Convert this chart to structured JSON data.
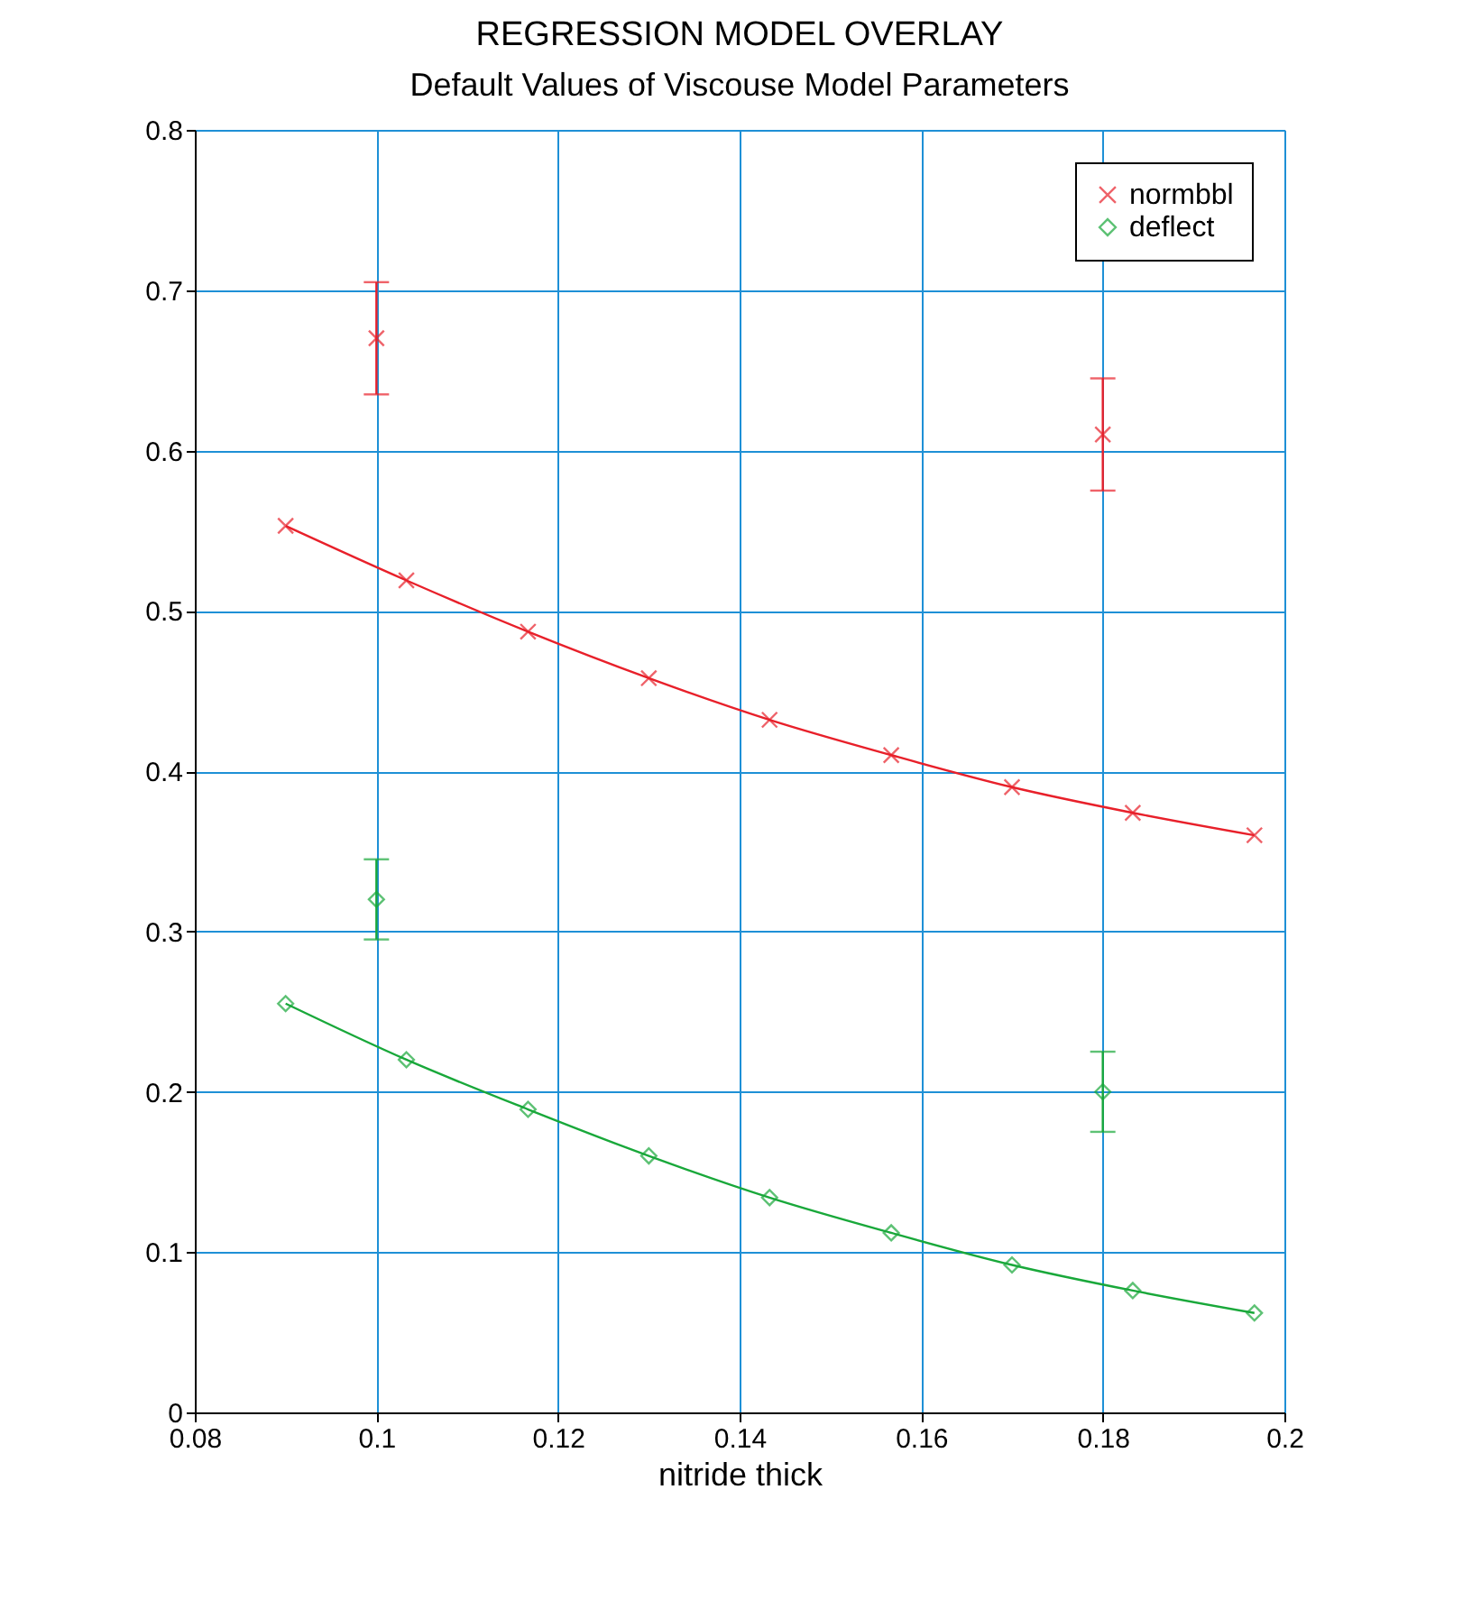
{
  "chart_data": {
    "type": "line",
    "title": "REGRESSION MODEL OVERLAY",
    "subtitle": "Default Values of Viscouse Model Parameters",
    "xlabel": "nitride thick",
    "xlim": [
      0.08,
      0.2
    ],
    "xticks": [
      0.08,
      0.1,
      0.12,
      0.14,
      0.16,
      0.18,
      0.2
    ],
    "ylim": [
      0,
      0.8
    ],
    "yticks": [
      0,
      0.1,
      0.2,
      0.3,
      0.4,
      0.5,
      0.6,
      0.7,
      0.8
    ],
    "grid": true,
    "legend": "top right",
    "series": [
      {
        "name": "normbbl",
        "marker": "cross",
        "color": "#e8202a",
        "x": [
          0.09,
          0.1033,
          0.1167,
          0.13,
          0.1433,
          0.1567,
          0.17,
          0.1833,
          0.1967
        ],
        "values": [
          0.553,
          0.519,
          0.487,
          0.458,
          0.432,
          0.41,
          0.39,
          0.374,
          0.36
        ]
      },
      {
        "name": "deflect",
        "marker": "diamond",
        "color": "#19a83a",
        "x": [
          0.09,
          0.1033,
          0.1167,
          0.13,
          0.1433,
          0.1567,
          0.17,
          0.1833,
          0.1967
        ],
        "values": [
          0.255,
          0.22,
          0.189,
          0.16,
          0.134,
          0.112,
          0.092,
          0.076,
          0.062
        ]
      },
      {
        "type": "scatter",
        "marker": "cross",
        "color": "#e8202a",
        "x": [
          0.1,
          0.18
        ],
        "values": [
          0.67,
          0.61
        ],
        "errors": [
          [
            0.635,
            0.705
          ],
          [
            0.575,
            0.645
          ]
        ]
      },
      {
        "type": "scatter",
        "marker": "diamond",
        "color": "#19a83a",
        "x": [
          0.1,
          0.18
        ],
        "values": [
          0.32,
          0.2
        ],
        "errors": [
          [
            0.295,
            0.345
          ],
          [
            0.175,
            0.225
          ]
        ]
      }
    ]
  }
}
